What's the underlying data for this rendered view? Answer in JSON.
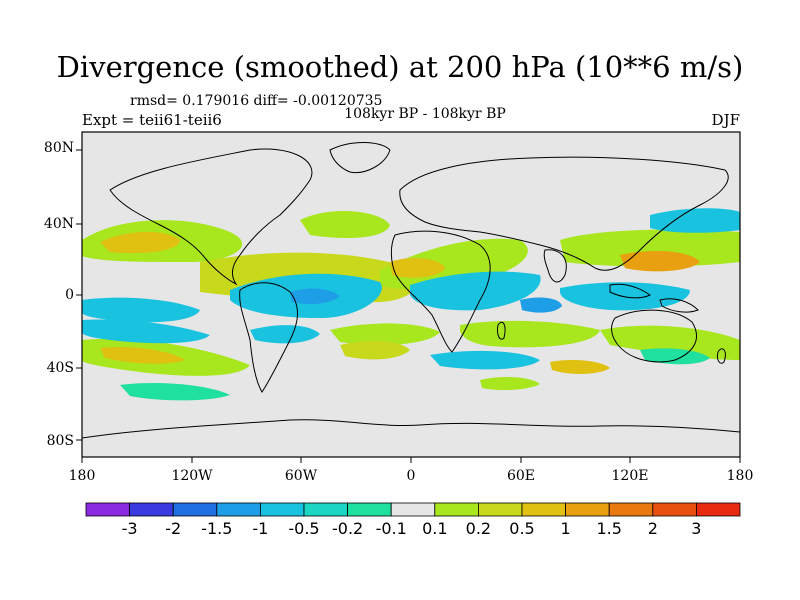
{
  "title": "Divergence (smoothed) at 200 hPa (10**6 m/s)",
  "stats": "rmsd= 0.179016 diff= -0.00120735",
  "period": "108kyr BP - 108kyr BP",
  "expt": "Expt = teii61-teii6",
  "season": "DJF",
  "lat_labels": [
    "80N",
    "40N",
    "0",
    "40S",
    "80S"
  ],
  "lon_labels": [
    "180",
    "120W",
    "60W",
    "0",
    "60E",
    "120E",
    "180"
  ],
  "colorbar": {
    "colors": [
      "#8a2be2",
      "#3a3ae0",
      "#1f6fe0",
      "#1e9ee6",
      "#19c3e0",
      "#1ad6c2",
      "#20e0a0",
      "#e6e6e6",
      "#a8e61e",
      "#c8d81a",
      "#e0c010",
      "#e8a010",
      "#e87a10",
      "#e85010",
      "#e82a10"
    ],
    "labels": [
      "-3",
      "-2",
      "-1.5",
      "-1",
      "-0.5",
      "-0.2",
      "-0.1",
      "0.1",
      "0.2",
      "0.5",
      "1",
      "1.5",
      "2",
      "3"
    ]
  }
}
